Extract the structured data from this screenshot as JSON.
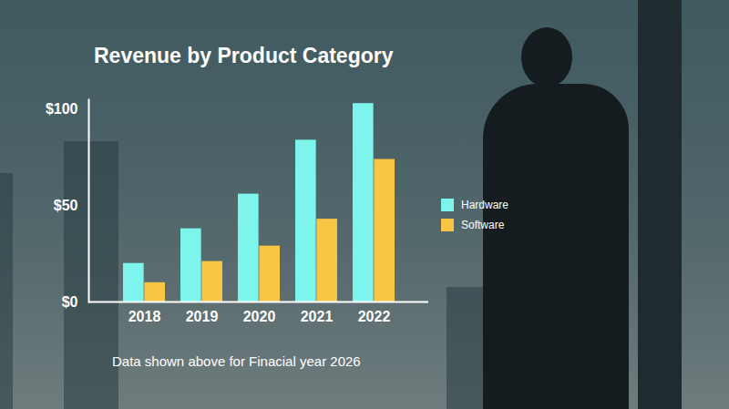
{
  "chart_data": {
    "type": "bar",
    "title": "Revenue by Product Category",
    "caption": "Data shown above for Finacial year 2026",
    "categories": [
      "2018",
      "2019",
      "2020",
      "2021",
      "2022"
    ],
    "series": [
      {
        "name": "Hardware",
        "color": "#7ef5ec",
        "values": [
          20,
          38,
          56,
          84,
          103
        ]
      },
      {
        "name": "Software",
        "color": "#f8c544",
        "values": [
          10,
          21,
          29,
          43,
          74
        ]
      }
    ],
    "ylim": [
      0,
      105
    ],
    "yticks": [
      {
        "value": 0,
        "label": "$0"
      },
      {
        "value": 50,
        "label": "$50"
      },
      {
        "value": 100,
        "label": "$100"
      }
    ],
    "grid": false,
    "legend": "right"
  }
}
